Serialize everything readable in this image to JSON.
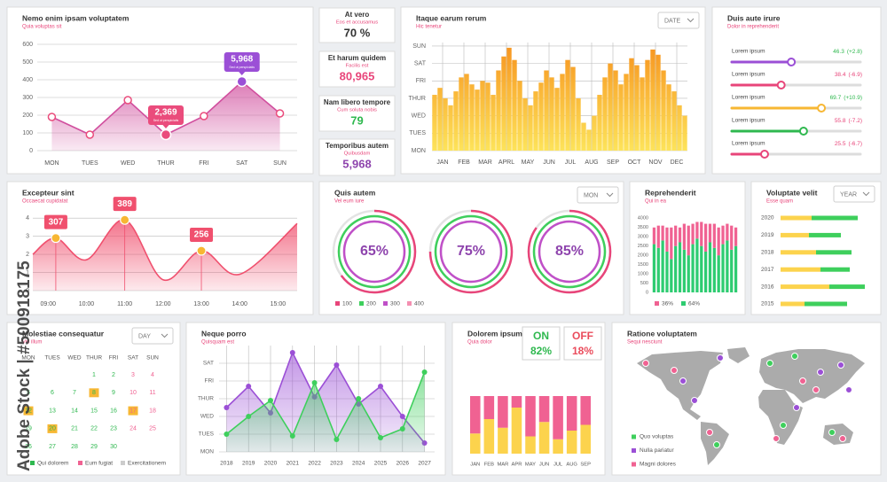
{
  "watermark": "Adobe Stock | #500918175",
  "chart_data": [
    {
      "type": "area",
      "title": "Nemo enim ipsam voluptatem",
      "subtitle": "Quia voluptas sit",
      "categories": [
        "MON",
        "TUES",
        "WED",
        "THUR",
        "FRI",
        "SAT",
        "SUN"
      ],
      "values": [
        190,
        90,
        285,
        90,
        195,
        390,
        210
      ],
      "color": "#d14f9e",
      "ylim": [
        0,
        600
      ],
      "yticks": [
        0,
        100,
        200,
        300,
        400,
        500,
        600
      ],
      "grid": true,
      "annotations": [
        {
          "category": "THUR",
          "label": "2,369",
          "note": "Sed ut perspiciatis",
          "color": "#ea4c7c"
        },
        {
          "category": "SAT",
          "label": "5,968",
          "note": "Sed ut perspiciatis",
          "color": "#9b4fd6"
        }
      ]
    },
    {
      "type": "column",
      "title": "Itaque earum rerum",
      "subtitle": "Hic tenetur",
      "dropdown": "DATE",
      "month_labels": [
        "JAN",
        "FEB",
        "MAR",
        "APRL",
        "MAY",
        "JUN",
        "JUL",
        "AUG",
        "SEP",
        "OCT",
        "NOV",
        "DEC"
      ],
      "values": [
        3.2,
        3.6,
        3.0,
        2.6,
        3.4,
        4.2,
        4.4,
        3.8,
        3.5,
        4.0,
        3.9,
        3.2,
        4.6,
        5.4,
        5.9,
        5.2,
        4.0,
        3.0,
        2.6,
        3.4,
        3.9,
        4.6,
        4.2,
        3.6,
        4.4,
        5.2,
        4.8,
        3.0,
        1.6,
        1.2,
        2.0,
        3.2,
        4.2,
        5.0,
        4.6,
        3.8,
        4.4,
        5.3,
        4.9,
        4.2,
        5.2,
        5.8,
        5.5,
        4.6,
        3.8,
        3.4,
        2.6,
        2.0
      ],
      "ylim": [
        0,
        6.2
      ],
      "yticks": [
        {
          "value": 0,
          "label": "MON"
        },
        {
          "value": 1,
          "label": "TUES"
        },
        {
          "value": 2,
          "label": "WED"
        },
        {
          "value": 3,
          "label": "THUR"
        },
        {
          "value": 4,
          "label": "FRI"
        },
        {
          "value": 5,
          "label": "SAT"
        },
        {
          "value": 6,
          "label": "SUN"
        }
      ],
      "grid": true,
      "colors": [
        "#f7931e",
        "#fde35a"
      ]
    },
    {
      "type": "smooth_area",
      "title": "Excepteur sint",
      "subtitle": "Occaecat cupidatat",
      "x": [
        8.6,
        9.2,
        10,
        11,
        12,
        13,
        14,
        15.5
      ],
      "values": [
        2.0,
        2.9,
        1.7,
        3.9,
        0.6,
        2.2,
        0.9,
        3.7
      ],
      "point_labels": [
        null,
        "307",
        null,
        "389",
        null,
        "256",
        null,
        null
      ],
      "xlim": [
        8.6,
        15.5
      ],
      "xticks": [
        {
          "value": 9,
          "label": "09:00"
        },
        {
          "value": 10,
          "label": "10:00"
        },
        {
          "value": 11,
          "label": "11:00"
        },
        {
          "value": 12,
          "label": "12:00"
        },
        {
          "value": 13,
          "label": "13:00"
        },
        {
          "value": 14,
          "label": "14:00"
        },
        {
          "value": 15,
          "label": "15:00"
        }
      ],
      "ylim": [
        0,
        4.3
      ],
      "yticks": [
        0,
        1,
        2,
        3,
        4
      ],
      "grid": true,
      "color": "#f0506e",
      "marker_color": "#f7b733"
    },
    {
      "type": "gauges",
      "title": "Quis autem",
      "subtitle": "Vel eum iure",
      "dropdown": "MON",
      "values": [
        65,
        75,
        85
      ],
      "value_labels": [
        "65%",
        "75%",
        "85%"
      ],
      "color": "#8e44ad",
      "legend": [
        {
          "name": "100",
          "color": "#e8457a"
        },
        {
          "name": "200",
          "color": "#3ecf5c"
        },
        {
          "name": "300",
          "color": "#c050c8"
        },
        {
          "name": "400",
          "color": "#f48fb1"
        }
      ]
    },
    {
      "type": "stacked_column",
      "title": "Reprehenderit",
      "subtitle": "Qui in ea",
      "ylim": [
        0,
        4300
      ],
      "yticks": [
        0,
        500,
        1000,
        1500,
        2000,
        2500,
        3000,
        3500,
        4000
      ],
      "series": [
        {
          "name": "64%",
          "color": "#2ecc71",
          "values": [
            2600,
            2400,
            2800,
            2200,
            1800,
            2500,
            2700,
            2300,
            2000,
            2600,
            2900,
            2500,
            2200,
            2700,
            2400,
            2000,
            2600,
            2800,
            2300,
            2500
          ]
        },
        {
          "name": "36%",
          "color": "#f06292",
          "values": [
            900,
            1200,
            800,
            1300,
            1700,
            1100,
            800,
            1400,
            1600,
            1100,
            900,
            1300,
            1500,
            1000,
            1300,
            1500,
            1000,
            900,
            1300,
            1000
          ]
        }
      ]
    },
    {
      "type": "hbar_stacked",
      "title": "Voluptate velit",
      "subtitle": "Esse quam",
      "dropdown": "YEAR",
      "categories": [
        "2020",
        "2019",
        "2018",
        "2017",
        "2016",
        "2015"
      ],
      "xlim": [
        0,
        100
      ],
      "series": [
        {
          "color": "#fcd34d",
          "values": [
            35,
            32,
            40,
            45,
            55,
            27
          ]
        },
        {
          "color": "#3ecf5c",
          "values": [
            52,
            36,
            40,
            33,
            40,
            48
          ]
        }
      ]
    },
    {
      "type": "area_lines",
      "title": "Neque porro",
      "subtitle": "Quisquam est",
      "categories": [
        "2018",
        "2019",
        "2020",
        "2021",
        "2022",
        "2023",
        "2024",
        "2025",
        "2026",
        "2027"
      ],
      "ylim": [
        0,
        6
      ],
      "yticks": [
        {
          "value": 0,
          "label": "MON"
        },
        {
          "value": 1,
          "label": "TUES"
        },
        {
          "value": 2,
          "label": "WED"
        },
        {
          "value": 3,
          "label": "THUR"
        },
        {
          "value": 4,
          "label": "FRI"
        },
        {
          "value": 5,
          "label": "SAT"
        }
      ],
      "grid": true,
      "series": [
        {
          "color": "#9b4fd6",
          "values": [
            2.5,
            3.7,
            2.2,
            5.6,
            3.1,
            4.9,
            2.7,
            3.7,
            2.0,
            0.5
          ]
        },
        {
          "color": "#3ecf5c",
          "values": [
            1.0,
            2.0,
            2.9,
            0.9,
            3.9,
            0.7,
            3.0,
            0.8,
            1.3,
            4.5
          ]
        }
      ]
    },
    {
      "type": "stacked_percent",
      "title": "Dolorem ipsum",
      "subtitle": "Quia dolor",
      "on": {
        "label": "ON",
        "value": "82%",
        "color": "#2fb84f"
      },
      "off": {
        "label": "OFF",
        "value": "18%",
        "color": "#ea4c5c"
      },
      "categories": [
        "JAN",
        "FEB",
        "MAR",
        "APR",
        "MAY",
        "JUN",
        "JUL",
        "AUG",
        "SEP"
      ],
      "ylim": [
        0,
        100
      ],
      "series": [
        {
          "color": "#fcd34d",
          "values": [
            35,
            60,
            45,
            80,
            30,
            55,
            25,
            40,
            50
          ]
        },
        {
          "color": "#f06292",
          "values": [
            65,
            40,
            55,
            20,
            70,
            45,
            75,
            60,
            50
          ]
        }
      ]
    }
  ],
  "kpis": [
    {
      "title": "At vero",
      "subtitle": "Eos et accusamus",
      "value": "70 %",
      "color": "#333333"
    },
    {
      "title": "Et harum quidem",
      "subtitle": "Facilis est",
      "value": "80,965",
      "color": "#e8457a"
    },
    {
      "title": "Nam libero tempore",
      "subtitle": "Cum soluta nobis",
      "value": "79",
      "color": "#2fb84f"
    },
    {
      "title": "Temporibus autem",
      "subtitle": "Quibusdam",
      "value": "5,968",
      "color": "#8e44ad"
    }
  ],
  "sliders": {
    "title": "Duis aute irure",
    "subtitle": "Dolor in reprehenderit",
    "range": [
      0,
      100
    ],
    "items": [
      {
        "label": "Lorem ipsum",
        "value": 46.3,
        "change": "(+2.8)",
        "color": "#9b4fd6",
        "text_color": "#2fb84f"
      },
      {
        "label": "Lorem ipsum",
        "value": 38.4,
        "change": "(-6.9)",
        "color": "#e8457a",
        "text_color": "#e8457a"
      },
      {
        "label": "Lorem ipsum",
        "value": 69.7,
        "change": "(+10.9)",
        "color": "#f7b733",
        "text_color": "#2fb84f"
      },
      {
        "label": "Lorem ipsum",
        "value": 55.8,
        "change": "(-7.2)",
        "color": "#2fb84f",
        "text_color": "#e8457a"
      },
      {
        "label": "Lorem ipsum",
        "value": 25.5,
        "change": "(-6.7)",
        "color": "#e8457a",
        "text_color": "#e8457a"
      }
    ]
  },
  "calendar": {
    "title": "Molestiae consequatur",
    "subtitle": "Vel illum",
    "dropdown": "DAY",
    "weekdays": [
      "MON",
      "TUES",
      "WED",
      "THUR",
      "FRI",
      "SAT",
      "SUN"
    ],
    "weeks": [
      [
        null,
        null,
        null,
        1,
        2,
        3,
        4
      ],
      [
        5,
        6,
        7,
        8,
        9,
        10,
        11
      ],
      [
        12,
        13,
        14,
        15,
        16,
        17,
        18
      ],
      [
        19,
        20,
        21,
        22,
        23,
        24,
        25
      ],
      [
        26,
        27,
        28,
        29,
        30,
        null,
        null
      ]
    ],
    "highlighted": [
      8,
      12,
      17,
      20
    ],
    "legend": [
      {
        "name": "Qui dolorem",
        "color": "#2fb84f"
      },
      {
        "name": "Eum fugiat",
        "color": "#f06292"
      },
      {
        "name": "Exercitationem",
        "color": "#cccccc"
      }
    ]
  },
  "map": {
    "title": "Ratione voluptatem",
    "subtitle": "Sequi nesciunt",
    "legend": [
      {
        "name": "Quo voluptas",
        "color": "#3ecf5c"
      },
      {
        "name": "Nulla pariatur",
        "color": "#9b4fd6"
      },
      {
        "name": "Magni dolores",
        "color": "#f06292"
      }
    ]
  }
}
